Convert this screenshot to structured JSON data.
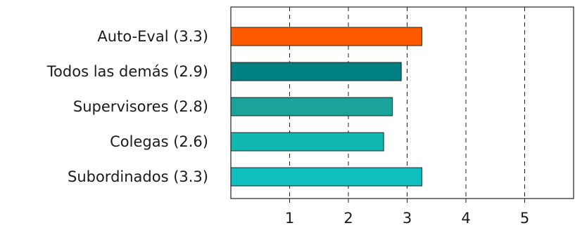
{
  "chart_data": {
    "type": "bar",
    "orientation": "horizontal",
    "categories": [
      "Auto-Eval (3.3)",
      "Todos las demás (2.9)",
      "Supervisores (2.8)",
      "Colegas (2.6)",
      "Subordinados (3.3)"
    ],
    "values": [
      3.25,
      2.9,
      2.75,
      2.6,
      3.25
    ],
    "colors": [
      "#ff5a00",
      "#008080",
      "#1aa39b",
      "#10b8b1",
      "#10bfbf"
    ],
    "xlim": [
      0,
      5.85
    ],
    "xticks": [
      "1",
      "2",
      "3",
      "4",
      "5"
    ],
    "xtick_values": [
      1,
      2,
      3,
      4,
      5
    ],
    "grid": "vertical dashed",
    "title": "",
    "xlabel": "",
    "ylabel": ""
  }
}
